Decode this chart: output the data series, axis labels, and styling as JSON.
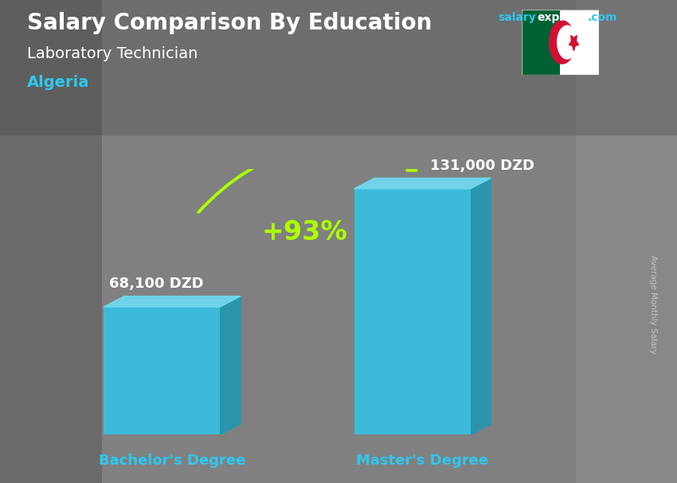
{
  "title": "Salary Comparison By Education",
  "subtitle": "Laboratory Technician",
  "country": "Algeria",
  "categories": [
    "Bachelor's Degree",
    "Master's Degree"
  ],
  "values": [
    68100,
    131000
  ],
  "labels": [
    "68,100 DZD",
    "131,000 DZD"
  ],
  "pct_change": "+93%",
  "bar_color_face": "#2ec8ef",
  "bar_color_side": "#1a9ab8",
  "bar_color_top": "#70dcf5",
  "bg_color": "#8a8a8a",
  "title_color": "#ffffff",
  "country_color": "#2ec8ef",
  "label_color": "#ffffff",
  "xticklabel_color": "#2ec8ef",
  "pct_color": "#aaff00",
  "sal_color1": "#2ec8ef",
  "sal_color2": "#ffffff",
  "ylabel_text": "Average Monthly Salary",
  "ylabel_color": "#cccccc",
  "figsize": [
    8.5,
    6.06
  ],
  "dpi": 100
}
